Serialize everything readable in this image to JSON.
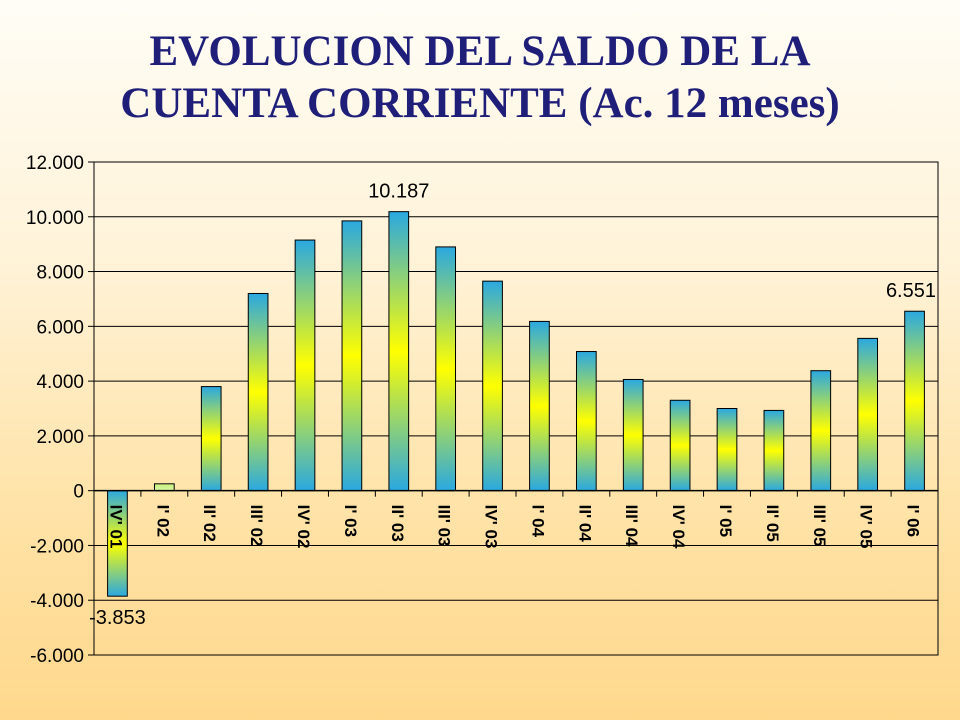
{
  "title_line1": "EVOLUCION DEL SALDO DE LA",
  "title_line2": "CUENTA CORRIENTE (Ac. 12 meses)",
  "chart_data": {
    "type": "bar",
    "title": "EVOLUCION DEL SALDO DE LA CUENTA CORRIENTE (Ac. 12 meses)",
    "categories": [
      "IV' 01",
      "I' 02",
      "II' 02",
      "III' 02",
      "IV' 02",
      "I' 03",
      "II' 03",
      "III' 03",
      "IV' 03",
      "I' 04",
      "II' 04",
      "III' 04",
      "IV' 04",
      "I' 05",
      "II' 05",
      "III' 05",
      "IV' 05",
      "I' 06"
    ],
    "values": [
      -3853,
      250,
      3800,
      7200,
      9150,
      9850,
      10187,
      8900,
      7650,
      6180,
      5080,
      4060,
      3300,
      3000,
      2930,
      4380,
      5560,
      6551
    ],
    "data_labels": [
      {
        "index": 0,
        "text": "-3.853"
      },
      {
        "index": 6,
        "text": "10.187"
      },
      {
        "index": 17,
        "text": "6.551"
      }
    ],
    "yticks": [
      "12.000",
      "10.000",
      "8.000",
      "6.000",
      "4.000",
      "2.000",
      "0",
      "-2.000",
      "-4.000",
      "-6.000"
    ],
    "ylim": [
      -6000,
      12000
    ],
    "xlabel": "",
    "ylabel": "",
    "grid": true,
    "legend": "none",
    "colors": {
      "bar_edge": "#2aa8d8",
      "bar_center": "#ffff00",
      "grid": "#000000"
    }
  }
}
